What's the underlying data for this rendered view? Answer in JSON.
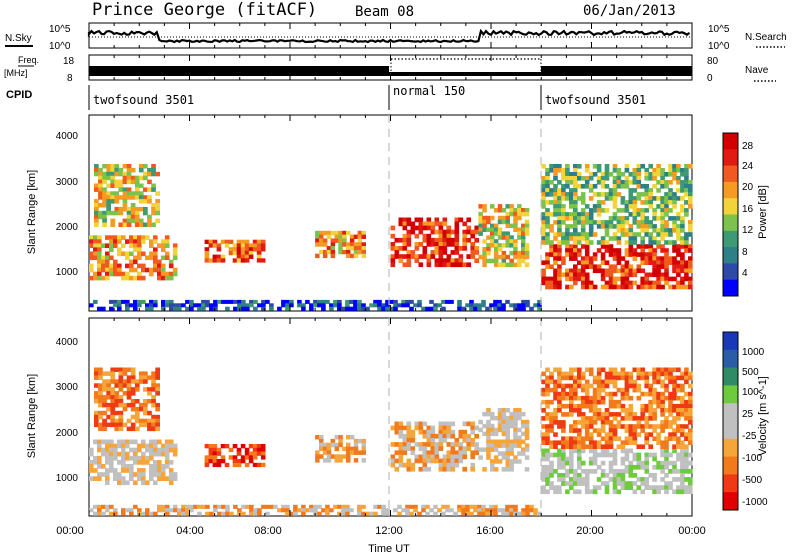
{
  "header": {
    "title": "Prince George (fitACF)",
    "beam": "Beam 08",
    "date": "06/Jan/2013"
  },
  "noise_panel": {
    "left_label": "N.Sky",
    "right_label": "N.Search",
    "left_ticks": [
      "10^5",
      "10^0"
    ],
    "right_ticks": [
      "10^5",
      "10^0"
    ]
  },
  "freq_panel": {
    "left_label_1": "Freq.",
    "left_label_2": "[MHz]",
    "right_label": "Nave",
    "left_ticks": [
      "18",
      "8"
    ],
    "right_ticks": [
      "80",
      "0"
    ]
  },
  "cpid": {
    "label": "CPID",
    "segments": [
      {
        "name": "twofsound 3501",
        "start_h": 0,
        "end_h": 12
      },
      {
        "name": "normal 150",
        "start_h": 12,
        "end_h": 18
      },
      {
        "name": "twofsound 3501",
        "start_h": 18,
        "end_h": 24
      }
    ]
  },
  "xaxis": {
    "label": "Time UT",
    "ticks": [
      "00:00",
      "04:00",
      "08:00",
      "12:00",
      "16:00",
      "20:00",
      "00:00"
    ]
  },
  "colors": {
    "power_scale": [
      "#0000ff",
      "#2d4aa8",
      "#2f7f86",
      "#3e9a74",
      "#7cc24c",
      "#f2d43a",
      "#f59a23",
      "#f05a1e",
      "#e01b14",
      "#d20000"
    ],
    "velocity_scale": [
      "#e00000",
      "#ef3a14",
      "#f27a1c",
      "#f6a53a",
      "#c0c0c0",
      "#c0c0c0",
      "#6ecb3e",
      "#2f8a66",
      "#2a5da6",
      "#1838b8"
    ]
  },
  "chart_data": [
    {
      "type": "heatmap",
      "name": "power",
      "ylabel": "Slant Range [km]",
      "colorbar_label": "Power [dB]",
      "colorbar_ticks": [
        "28",
        "24",
        "20",
        "16",
        "12",
        "8",
        "4"
      ],
      "y_ticks": [
        "4000",
        "3000",
        "2000",
        "1000"
      ],
      "ylim": [
        200,
        4600
      ],
      "xlim_hours": [
        0,
        24
      ],
      "patches": [
        {
          "t0": 0.0,
          "t1": 3.5,
          "r0": 900,
          "r1": 1900,
          "level": 6
        },
        {
          "t0": 0.2,
          "t1": 2.8,
          "r0": 2100,
          "r1": 3500,
          "level": 5
        },
        {
          "t0": 4.6,
          "t1": 7.0,
          "r0": 1300,
          "r1": 1800,
          "level": 7
        },
        {
          "t0": 9.0,
          "t1": 11.0,
          "r0": 1400,
          "r1": 2000,
          "level": 6
        },
        {
          "t0": 12.0,
          "t1": 15.5,
          "r0": 1200,
          "r1": 2300,
          "level": 8
        },
        {
          "t0": 15.5,
          "t1": 17.5,
          "r0": 1200,
          "r1": 2600,
          "level": 5
        },
        {
          "t0": 18.0,
          "t1": 24.0,
          "r0": 700,
          "r1": 1700,
          "level": 8
        },
        {
          "t0": 18.0,
          "t1": 24.0,
          "r0": 1700,
          "r1": 3500,
          "level": 4
        },
        {
          "t0": 0.0,
          "t1": 18.0,
          "r0": 220,
          "r1": 450,
          "level": 1
        }
      ]
    },
    {
      "type": "heatmap",
      "name": "velocity",
      "ylabel": "Slant Range [km]",
      "colorbar_label": "Velocity [m s^-1]",
      "colorbar_ticks": [
        "1000",
        "500",
        "100",
        "25",
        "-25",
        "-100",
        "-500",
        "-1000"
      ],
      "y_ticks": [
        "4000",
        "3000",
        "2000",
        "1000"
      ],
      "ylim": [
        200,
        4600
      ],
      "xlim_hours": [
        0,
        24
      ],
      "patches": [
        {
          "t0": 0.0,
          "t1": 3.5,
          "r0": 900,
          "r1": 1900,
          "level": 4
        },
        {
          "t0": 0.2,
          "t1": 2.8,
          "r0": 2100,
          "r1": 3500,
          "level": 2
        },
        {
          "t0": 4.6,
          "t1": 7.0,
          "r0": 1300,
          "r1": 1800,
          "level": 1
        },
        {
          "t0": 9.0,
          "t1": 11.0,
          "r0": 1400,
          "r1": 2000,
          "level": 3
        },
        {
          "t0": 12.0,
          "t1": 15.5,
          "r0": 1200,
          "r1": 2300,
          "level": 3
        },
        {
          "t0": 15.5,
          "t1": 17.5,
          "r0": 1200,
          "r1": 2600,
          "level": 4
        },
        {
          "t0": 18.0,
          "t1": 24.0,
          "r0": 700,
          "r1": 1700,
          "level": 5
        },
        {
          "t0": 18.0,
          "t1": 24.0,
          "r0": 1700,
          "r1": 3500,
          "level": 2
        },
        {
          "t0": 0.0,
          "t1": 18.0,
          "r0": 220,
          "r1": 450,
          "level": 3
        }
      ]
    }
  ]
}
